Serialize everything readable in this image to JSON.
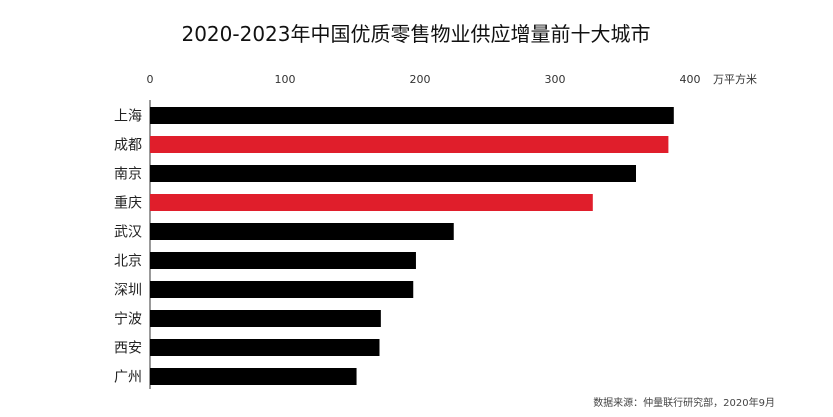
{
  "chart_data": {
    "type": "bar",
    "orientation": "horizontal",
    "title": "2020-2023年中国优质零售物业供应增量前十大城市",
    "unit": "万平方米",
    "xlim": [
      0,
      400
    ],
    "ticks": [
      0,
      100,
      200,
      300,
      400
    ],
    "tick_labels": [
      "0",
      "100",
      "200",
      "300",
      "400"
    ],
    "axis_position": "top",
    "grid": false,
    "categories": [
      "上海",
      "成都",
      "南京",
      "重庆",
      "武汉",
      "北京",
      "深圳",
      "宁波",
      "西安",
      "广州"
    ],
    "values": [
      388,
      384,
      360,
      328,
      225,
      197,
      195,
      171,
      170,
      153
    ],
    "colors": [
      "#000000",
      "#e01e2b",
      "#000000",
      "#e01e2b",
      "#000000",
      "#000000",
      "#000000",
      "#000000",
      "#000000",
      "#000000"
    ],
    "source": "数据来源：仲量联行研究部，2020年9月"
  }
}
